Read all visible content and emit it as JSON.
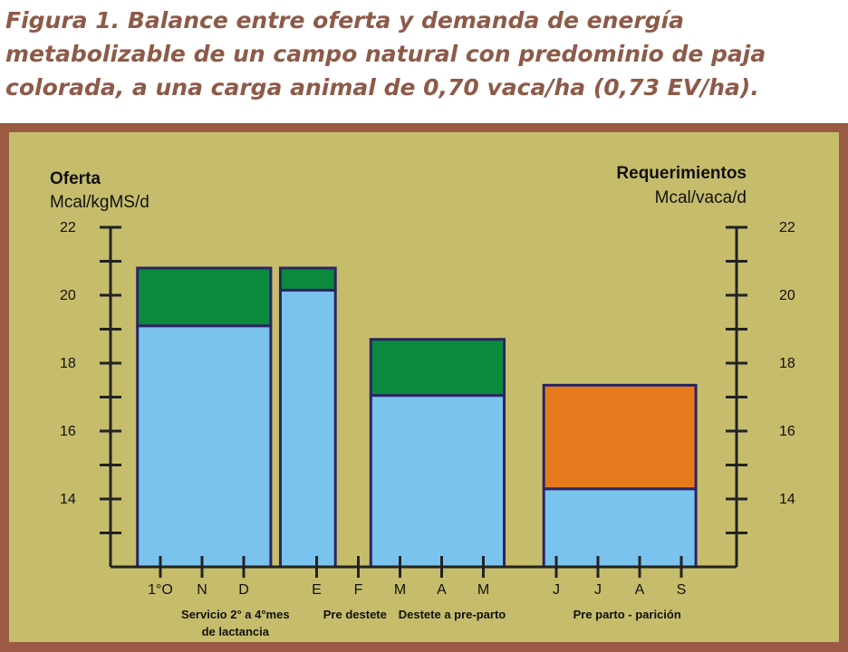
{
  "figure": {
    "caption": "Figura 1. Balance entre oferta y demanda de energía metabolizable de un campo natural con predominio de paja colorada, a una carga animal de 0,70 vaca/ha (0,73 EV/ha)."
  },
  "colors": {
    "border": "#9c5a44",
    "background": "#c6bd6c",
    "oferta_fill": "#7ac3ee",
    "exceso": "#0b8a3e",
    "deficit": "#e57a1c",
    "outline": "#2b2464",
    "axis": "#222222"
  },
  "chart_data": {
    "type": "bar",
    "left_axis": {
      "title": "Oferta",
      "unit": "Mcal/kgMS/d",
      "ticks": [
        22,
        20,
        18,
        16,
        14
      ]
    },
    "right_axis": {
      "title": "Requerimientos",
      "unit": "Mcal/vaca/d",
      "ticks": [
        22,
        20,
        18,
        16,
        14
      ]
    },
    "ylim": [
      12,
      22
    ],
    "months": [
      "1°O",
      "N",
      "D",
      "E",
      "F",
      "M",
      "A",
      "M",
      "J",
      "J",
      "A",
      "S"
    ],
    "month_index": [
      0,
      1,
      2,
      3.75,
      4.75,
      5.75,
      6.75,
      7.75,
      9.5,
      10.5,
      11.5,
      12.5
    ],
    "periods": [
      {
        "label_lines": [
          "Servicio 2° a 4°mes",
          "de lactancia"
        ],
        "x_center": 1.8
      },
      {
        "label_lines": [
          "Pre destete"
        ],
        "x_center": 4.67
      },
      {
        "label_lines": [
          "Destete a pre-parto"
        ],
        "x_center": 7.0
      },
      {
        "label_lines": [
          "Pre parto - parición"
        ],
        "x_center": 11.2
      }
    ],
    "bars": [
      {
        "start": -0.55,
        "end": 2.65,
        "base": 19.1,
        "top": 20.8,
        "top_type": "exceso"
      },
      {
        "start": 2.88,
        "end": 4.2,
        "base": 20.15,
        "top": 20.8,
        "top_type": "exceso"
      },
      {
        "start": 5.05,
        "end": 8.25,
        "base": 17.05,
        "top": 18.7,
        "top_type": "exceso"
      },
      {
        "start": 9.2,
        "end": 12.85,
        "base": 14.3,
        "top": 17.35,
        "top_type": "deficit"
      }
    ]
  }
}
